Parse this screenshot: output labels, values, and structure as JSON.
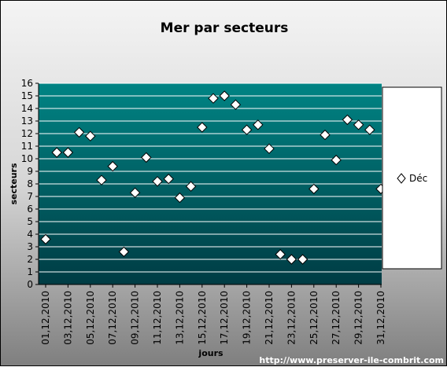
{
  "chart_data": {
    "type": "scatter",
    "title": "Mer par secteurs",
    "xlabel": "jours",
    "ylabel": "secteurs",
    "ylim": [
      0,
      16
    ],
    "yticks": [
      "0",
      "1",
      "2",
      "3",
      "4",
      "5",
      "6",
      "7",
      "8",
      "9",
      "10",
      "11",
      "12",
      "13",
      "14",
      "15",
      "16"
    ],
    "x_ticks": [
      "01,12,2010",
      "03,12,2010",
      "05,12,2010",
      "07,12,2010",
      "09,12,2010",
      "11,12,2010",
      "13,12,2010",
      "15,12,2010",
      "17,12,2010",
      "19,12,2010",
      "21,12,2010",
      "23,12,2010",
      "25,12,2010",
      "27,12,2010",
      "29,12,2010",
      "31,12,2010"
    ],
    "x": [
      "01,12,2010",
      "02,12,2010",
      "03,12,2010",
      "04,12,2010",
      "05,12,2010",
      "06,12,2010",
      "07,12,2010",
      "08,12,2010",
      "09,12,2010",
      "10,12,2010",
      "11,12,2010",
      "12,12,2010",
      "13,12,2010",
      "14,12,2010",
      "15,12,2010",
      "16,12,2010",
      "17,12,2010",
      "18,12,2010",
      "19,12,2010",
      "20,12,2010",
      "21,12,2010",
      "22,12,2010",
      "23,12,2010",
      "24,12,2010",
      "25,12,2010",
      "26,12,2010",
      "27,12,2010",
      "28,12,2010",
      "29,12,2010",
      "30,12,2010",
      "31,12,2010"
    ],
    "series": [
      {
        "name": "Déc",
        "marker": "diamond",
        "values": [
          3.6,
          10.5,
          10.5,
          12.1,
          11.8,
          8.3,
          9.4,
          2.6,
          7.3,
          10.1,
          8.2,
          8.4,
          6.9,
          7.8,
          12.5,
          14.8,
          15.0,
          14.3,
          12.3,
          12.7,
          10.8,
          2.4,
          2.0,
          2.0,
          7.6,
          11.9,
          9.9,
          13.1,
          12.7,
          12.3,
          7.6
        ]
      }
    ],
    "grid": "horizontal",
    "legend_position": "right",
    "colors": {
      "plot_top": "#008484",
      "plot_bottom": "#003c44",
      "gridline": "#ffffff",
      "marker_fill": "#ffffff",
      "marker_stroke": "#000000"
    }
  },
  "footer": {
    "url": "http://www.preserver-ile-combrit.com"
  }
}
